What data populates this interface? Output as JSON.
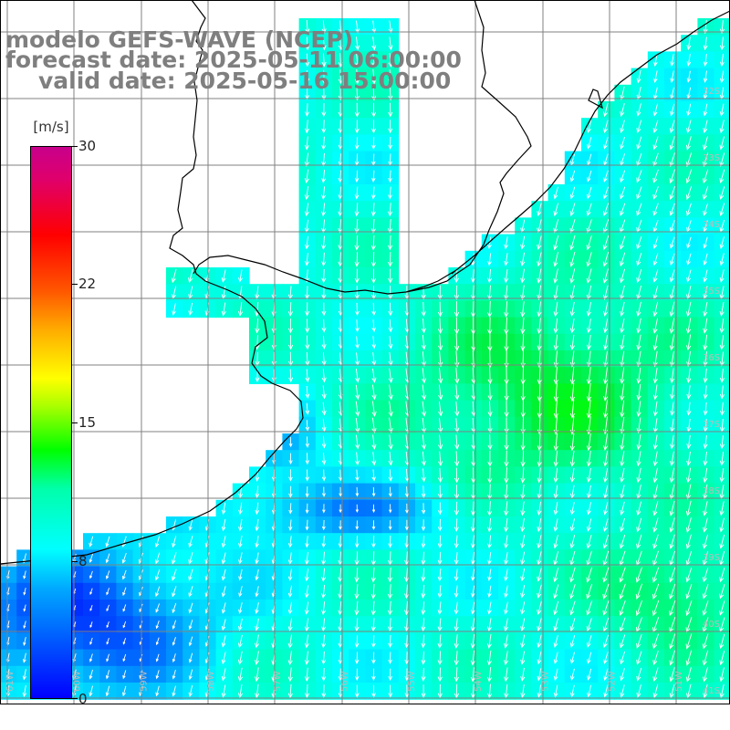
{
  "title": {
    "line1": "modelo GEFS-WAVE (NCEP)",
    "line2": "forecast date: 2025-05-11 06:00:00",
    "line3": "valid date: 2025-05-16 15:00:00"
  },
  "colorbar": {
    "units": "[m/s]",
    "ticks": [
      "30",
      "22",
      "15",
      "8",
      "0"
    ],
    "tick_values": [
      30,
      22,
      15,
      8,
      0
    ],
    "min": 0,
    "max": 30,
    "colors": [
      "#0000ff",
      "#00aaff",
      "#00ffff",
      "#00ffaa",
      "#00ff00",
      "#aaff00",
      "#ffff00",
      "#ffaa00",
      "#ff5500",
      "#ff0000",
      "#c8008c"
    ]
  },
  "map": {
    "lat_labels": [
      "32S",
      "33S",
      "34S",
      "35S",
      "36S",
      "37S",
      "38S",
      "39S",
      "40S",
      "41S"
    ],
    "lon_labels": [
      "61W",
      "60W",
      "59W",
      "58W",
      "57W",
      "56W",
      "55W",
      "54W",
      "53W",
      "52W",
      "51W"
    ],
    "land_color": "#ffffff",
    "grid_color": "#808080",
    "arrow_color": "#ffffff"
  }
}
